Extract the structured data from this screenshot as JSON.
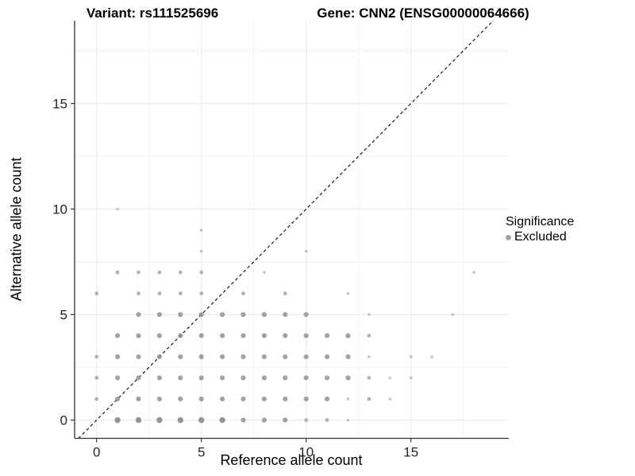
{
  "chart_data": {
    "type": "scatter",
    "titles": {
      "left": "Variant: rs111525696",
      "right": "Gene: CNN2 (ENSG00000064666)"
    },
    "xlabel": "Reference allele count",
    "ylabel": "Alternative allele count",
    "x_ticks": [
      0,
      5,
      10,
      15
    ],
    "y_ticks": [
      0,
      5,
      10,
      15
    ],
    "x_minor_gridlines": [
      2.5,
      7.5,
      12.5,
      17.5
    ],
    "y_minor_gridlines": [
      2.5,
      7.5,
      12.5,
      17.5
    ],
    "xlim": [
      -1.05,
      19.65
    ],
    "ylim": [
      -0.87,
      18.93
    ],
    "grid": true,
    "identity_line": {
      "equation": "y = x",
      "style": "dashed",
      "color": "#1a1a1a"
    },
    "legend": {
      "title": "Significance",
      "position": "right",
      "items": [
        {
          "label": "Excluded",
          "color": "#a4a4a4"
        }
      ]
    },
    "point_color": "#8c8c8c",
    "size_radius": {
      "t": 1.8,
      "s": 2.4,
      "m": 3.1,
      "l": 3.7
    },
    "size_opacity": {
      "t": 0.5,
      "s": 0.66,
      "m": 0.8,
      "l": 0.92
    },
    "points": [
      [
        1,
        10,
        "t"
      ],
      [
        5,
        9,
        "t"
      ],
      [
        5,
        8,
        "t"
      ],
      [
        10,
        8,
        "t"
      ],
      [
        1,
        7,
        "s"
      ],
      [
        2,
        7,
        "s"
      ],
      [
        3,
        7,
        "s"
      ],
      [
        4,
        7,
        "s"
      ],
      [
        5,
        7,
        "s"
      ],
      [
        8,
        7,
        "t"
      ],
      [
        18,
        7,
        "t"
      ],
      [
        0,
        6,
        "s"
      ],
      [
        2,
        6,
        "s"
      ],
      [
        3,
        6,
        "s"
      ],
      [
        4,
        6,
        "s"
      ],
      [
        5,
        6,
        "s"
      ],
      [
        7,
        6,
        "s"
      ],
      [
        9,
        6,
        "s"
      ],
      [
        12,
        6,
        "t"
      ],
      [
        2,
        5,
        "m"
      ],
      [
        3,
        5,
        "m"
      ],
      [
        4,
        5,
        "m"
      ],
      [
        5,
        5,
        "m"
      ],
      [
        6,
        5,
        "m"
      ],
      [
        7,
        5,
        "m"
      ],
      [
        8,
        5,
        "m"
      ],
      [
        9,
        5,
        "m"
      ],
      [
        10,
        5,
        "m"
      ],
      [
        13,
        5,
        "t"
      ],
      [
        17,
        5,
        "t"
      ],
      [
        1,
        4,
        "m"
      ],
      [
        2,
        4,
        "m"
      ],
      [
        3,
        4,
        "m"
      ],
      [
        4,
        4,
        "m"
      ],
      [
        5,
        4,
        "m"
      ],
      [
        6,
        4,
        "m"
      ],
      [
        7,
        4,
        "m"
      ],
      [
        8,
        4,
        "m"
      ],
      [
        9,
        4,
        "m"
      ],
      [
        10,
        4,
        "m"
      ],
      [
        11,
        4,
        "m"
      ],
      [
        12,
        4,
        "m"
      ],
      [
        13,
        4,
        "s"
      ],
      [
        0,
        3,
        "s"
      ],
      [
        1,
        3,
        "m"
      ],
      [
        2,
        3,
        "m"
      ],
      [
        3,
        3,
        "m"
      ],
      [
        4,
        3,
        "m"
      ],
      [
        5,
        3,
        "m"
      ],
      [
        6,
        3,
        "m"
      ],
      [
        7,
        3,
        "m"
      ],
      [
        8,
        3,
        "m"
      ],
      [
        9,
        3,
        "m"
      ],
      [
        10,
        3,
        "m"
      ],
      [
        11,
        3,
        "m"
      ],
      [
        12,
        3,
        "m"
      ],
      [
        13,
        3,
        "t"
      ],
      [
        15,
        3,
        "t"
      ],
      [
        16,
        3,
        "t"
      ],
      [
        0,
        2,
        "s"
      ],
      [
        1,
        2,
        "m"
      ],
      [
        2,
        2,
        "m"
      ],
      [
        3,
        2,
        "m"
      ],
      [
        4,
        2,
        "m"
      ],
      [
        5,
        2,
        "m"
      ],
      [
        6,
        2,
        "m"
      ],
      [
        7,
        2,
        "m"
      ],
      [
        8,
        2,
        "m"
      ],
      [
        9,
        2,
        "m"
      ],
      [
        10,
        2,
        "m"
      ],
      [
        11,
        2,
        "m"
      ],
      [
        12,
        2,
        "m"
      ],
      [
        13,
        2,
        "s"
      ],
      [
        14,
        2,
        "t"
      ],
      [
        15,
        2,
        "t"
      ],
      [
        0,
        1,
        "s"
      ],
      [
        1,
        1,
        "m"
      ],
      [
        2,
        1,
        "m"
      ],
      [
        3,
        1,
        "m"
      ],
      [
        4,
        1,
        "m"
      ],
      [
        5,
        1,
        "m"
      ],
      [
        6,
        1,
        "m"
      ],
      [
        7,
        1,
        "m"
      ],
      [
        8,
        1,
        "m"
      ],
      [
        9,
        1,
        "m"
      ],
      [
        10,
        1,
        "m"
      ],
      [
        11,
        1,
        "m"
      ],
      [
        12,
        1,
        "t"
      ],
      [
        13,
        1,
        "s"
      ],
      [
        14,
        1,
        "t"
      ],
      [
        1,
        0,
        "l"
      ],
      [
        2,
        0,
        "l"
      ],
      [
        3,
        0,
        "l"
      ],
      [
        4,
        0,
        "l"
      ],
      [
        5,
        0,
        "l"
      ],
      [
        6,
        0,
        "l"
      ],
      [
        7,
        0,
        "m"
      ],
      [
        8,
        0,
        "m"
      ],
      [
        9,
        0,
        "m"
      ],
      [
        10,
        0,
        "s"
      ],
      [
        11,
        0,
        "s"
      ],
      [
        12,
        0,
        "t"
      ]
    ]
  }
}
